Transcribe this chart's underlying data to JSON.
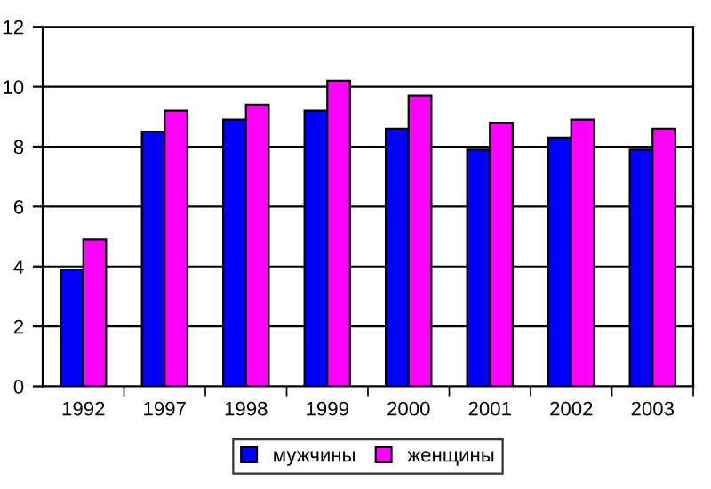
{
  "chart_data": {
    "type": "bar",
    "categories": [
      "1992",
      "1997",
      "1998",
      "1999",
      "2000",
      "2001",
      "2002",
      "2003"
    ],
    "series": [
      {
        "name": "мужчины",
        "color": "#0000ff",
        "values": [
          3.9,
          8.5,
          8.9,
          9.2,
          8.6,
          7.9,
          8.3,
          7.9
        ]
      },
      {
        "name": "женщины",
        "color": "#ff00ff",
        "values": [
          4.9,
          9.2,
          9.4,
          10.2,
          9.7,
          8.8,
          8.9,
          8.6
        ]
      }
    ],
    "ylim": [
      0,
      12
    ],
    "yticks": [
      0,
      2,
      4,
      6,
      8,
      10,
      12
    ],
    "grid": "y",
    "legend": "bottom"
  }
}
